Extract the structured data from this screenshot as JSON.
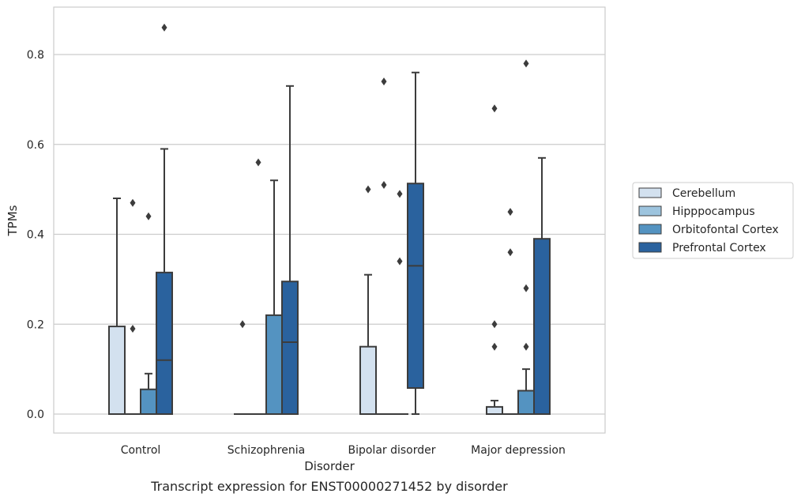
{
  "caption": "Transcript expression for ENST00000271452 by disorder",
  "chart_data": {
    "type": "boxplot",
    "xlabel": "Disorder",
    "ylabel": "TPMs",
    "ylim": [
      -0.04,
      0.91
    ],
    "yticks": [
      0.0,
      0.2,
      0.4,
      0.6,
      0.8
    ],
    "ytick_labels": [
      "0.0",
      "0.2",
      "0.4",
      "0.6",
      "0.8"
    ],
    "grid": "horizontal",
    "legend_position": "outside-right",
    "categories": [
      "Control",
      "Schizophrenia",
      "Bipolar disorder",
      "Major depression"
    ],
    "series": [
      {
        "name": "Cerebellum",
        "color": "#d3e1ef",
        "boxes": [
          {
            "q1": 0.0,
            "median": 0.0,
            "q3": 0.195,
            "whisker_low": 0.0,
            "whisker_high": 0.48,
            "outliers": []
          },
          {
            "q1": 0.0,
            "median": 0.0,
            "q3": 0.0,
            "whisker_low": 0.0,
            "whisker_high": 0.0,
            "outliers": [
              0.2
            ]
          },
          {
            "q1": 0.0,
            "median": 0.0,
            "q3": 0.15,
            "whisker_low": 0.0,
            "whisker_high": 0.31,
            "outliers": [
              0.5
            ]
          },
          {
            "q1": 0.0,
            "median": 0.0,
            "q3": 0.016,
            "whisker_low": 0.0,
            "whisker_high": 0.03,
            "outliers": [
              0.68,
              0.2,
              0.15
            ]
          }
        ]
      },
      {
        "name": "Hipppocampus",
        "color": "#9dc4de",
        "boxes": [
          {
            "q1": 0.0,
            "median": 0.0,
            "q3": 0.0,
            "whisker_low": 0.0,
            "whisker_high": 0.0,
            "outliers": [
              0.47,
              0.19
            ]
          },
          {
            "q1": 0.0,
            "median": 0.0,
            "q3": 0.0,
            "whisker_low": 0.0,
            "whisker_high": 0.0,
            "outliers": [
              0.56
            ]
          },
          {
            "q1": 0.0,
            "median": 0.0,
            "q3": 0.0,
            "whisker_low": 0.0,
            "whisker_high": 0.0,
            "outliers": [
              0.74,
              0.51
            ]
          },
          {
            "q1": 0.0,
            "median": 0.0,
            "q3": 0.0,
            "whisker_low": 0.0,
            "whisker_high": 0.0,
            "outliers": [
              0.45,
              0.36
            ]
          }
        ]
      },
      {
        "name": "Orbitofontal Cortex",
        "color": "#5493c1",
        "boxes": [
          {
            "q1": 0.0,
            "median": 0.0,
            "q3": 0.055,
            "whisker_low": 0.0,
            "whisker_high": 0.09,
            "outliers": [
              0.44
            ]
          },
          {
            "q1": 0.0,
            "median": 0.0,
            "q3": 0.22,
            "whisker_low": 0.0,
            "whisker_high": 0.52,
            "outliers": []
          },
          {
            "q1": 0.0,
            "median": 0.0,
            "q3": 0.0,
            "whisker_low": 0.0,
            "whisker_high": 0.0,
            "outliers": [
              0.49,
              0.34
            ]
          },
          {
            "q1": 0.0,
            "median": 0.0,
            "q3": 0.052,
            "whisker_low": 0.0,
            "whisker_high": 0.1,
            "outliers": [
              0.78,
              0.28,
              0.15
            ]
          }
        ]
      },
      {
        "name": "Prefrontal Cortex",
        "color": "#2a629e",
        "boxes": [
          {
            "q1": 0.0,
            "median": 0.12,
            "q3": 0.315,
            "whisker_low": 0.0,
            "whisker_high": 0.59,
            "outliers": [
              0.86
            ]
          },
          {
            "q1": 0.0,
            "median": 0.16,
            "q3": 0.295,
            "whisker_low": 0.0,
            "whisker_high": 0.73,
            "outliers": []
          },
          {
            "q1": 0.058,
            "median": 0.33,
            "q3": 0.513,
            "whisker_low": 0.0,
            "whisker_high": 0.76,
            "outliers": []
          },
          {
            "q1": 0.0,
            "median": 0.0,
            "q3": 0.39,
            "whisker_low": 0.0,
            "whisker_high": 0.57,
            "outliers": []
          }
        ]
      }
    ]
  }
}
